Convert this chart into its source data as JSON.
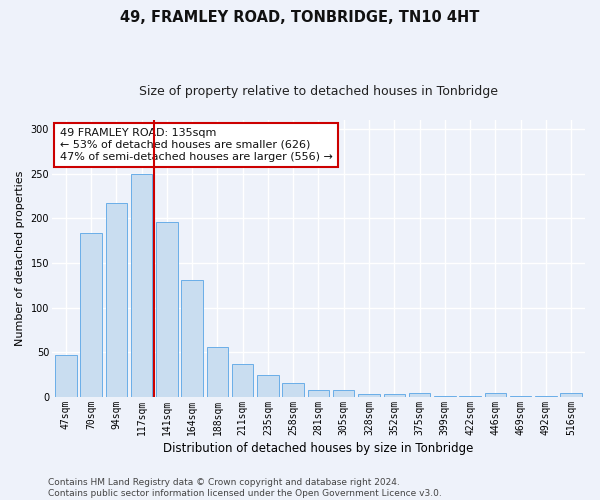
{
  "title": "49, FRAMLEY ROAD, TONBRIDGE, TN10 4HT",
  "subtitle": "Size of property relative to detached houses in Tonbridge",
  "xlabel": "Distribution of detached houses by size in Tonbridge",
  "ylabel": "Number of detached properties",
  "categories": [
    "47sqm",
    "70sqm",
    "94sqm",
    "117sqm",
    "141sqm",
    "164sqm",
    "188sqm",
    "211sqm",
    "235sqm",
    "258sqm",
    "281sqm",
    "305sqm",
    "328sqm",
    "352sqm",
    "375sqm",
    "399sqm",
    "422sqm",
    "446sqm",
    "469sqm",
    "492sqm",
    "516sqm"
  ],
  "values": [
    47,
    184,
    217,
    250,
    196,
    131,
    56,
    37,
    25,
    16,
    8,
    8,
    3,
    3,
    4,
    1,
    1,
    5,
    1,
    1,
    5
  ],
  "bar_color": "#c9ddf0",
  "bar_edge_color": "#6aaee8",
  "vline_bar_index": 4,
  "vline_color": "#cc0000",
  "annotation_text": "49 FRAMLEY ROAD: 135sqm\n← 53% of detached houses are smaller (626)\n47% of semi-detached houses are larger (556) →",
  "annotation_box_color": "#ffffff",
  "annotation_box_edge": "#cc0000",
  "ylim": [
    0,
    310
  ],
  "yticks": [
    0,
    50,
    100,
    150,
    200,
    250,
    300
  ],
  "background_color": "#eef2fa",
  "grid_color": "#ffffff",
  "footer_line1": "Contains HM Land Registry data © Crown copyright and database right 2024.",
  "footer_line2": "Contains public sector information licensed under the Open Government Licence v3.0.",
  "title_fontsize": 10.5,
  "subtitle_fontsize": 9,
  "xlabel_fontsize": 8.5,
  "ylabel_fontsize": 8,
  "tick_fontsize": 7,
  "annotation_fontsize": 8,
  "footer_fontsize": 6.5
}
